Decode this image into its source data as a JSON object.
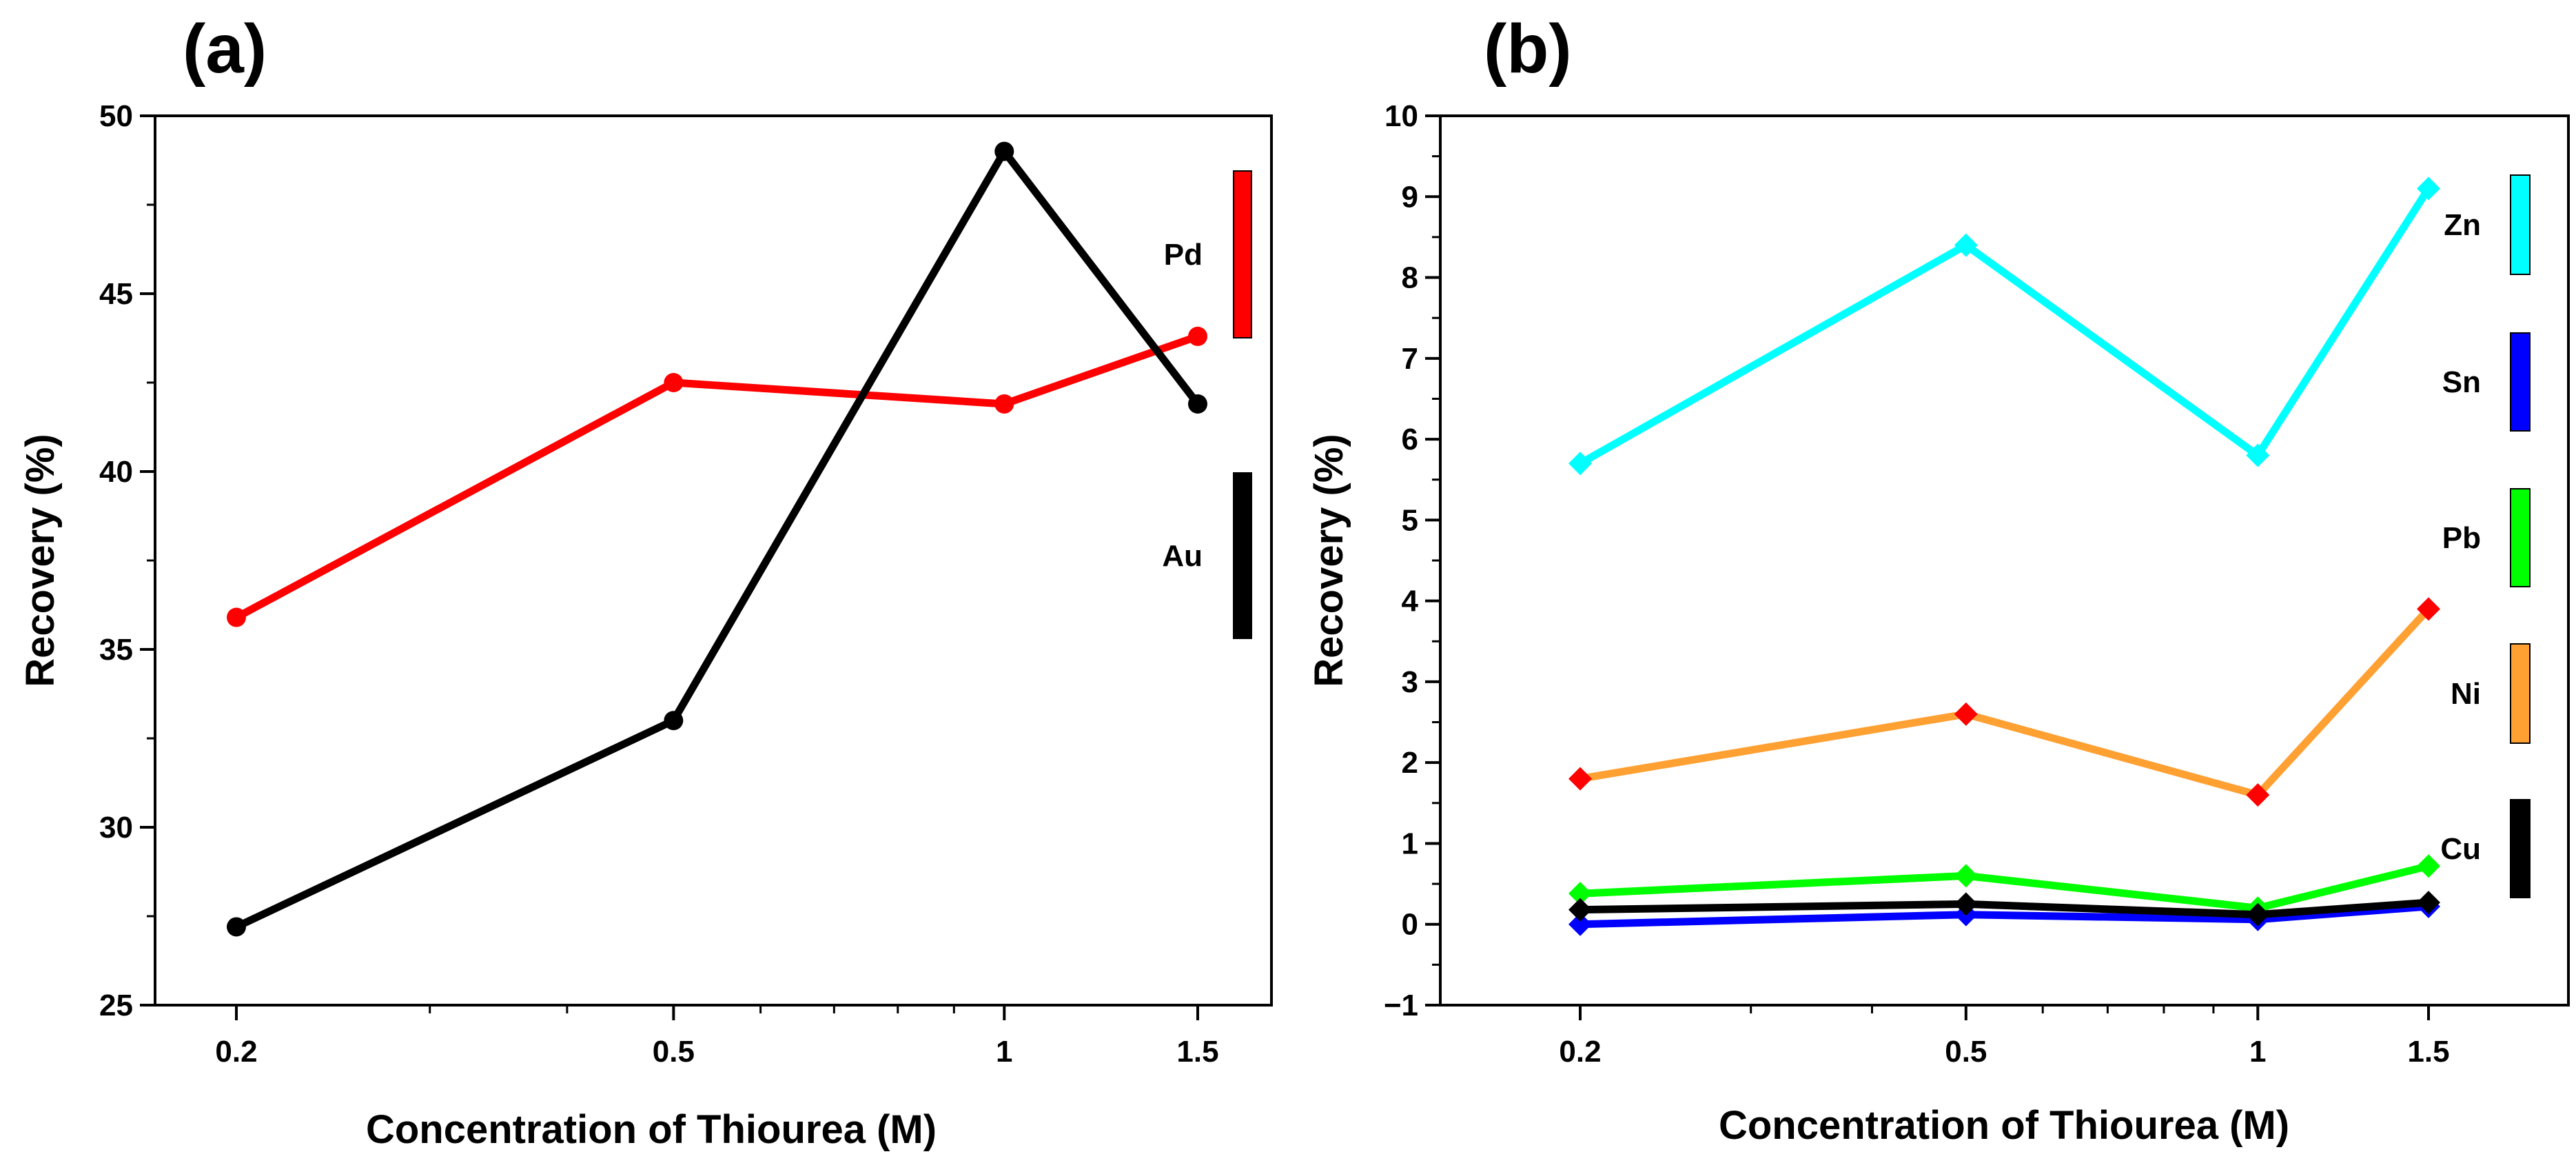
{
  "chart_data": [
    {
      "panel": "(a)",
      "type": "line",
      "xlabel": "Concentration of Thiourea (M)",
      "ylabel": "Recovery (%)",
      "xscale": "log",
      "xticks": [
        "0.2",
        "0.5",
        "1",
        "1.5"
      ],
      "x": [
        0.2,
        0.5,
        1,
        1.5
      ],
      "ylim": [
        25,
        50
      ],
      "yticks": [
        "25",
        "30",
        "35",
        "40",
        "45",
        "50"
      ],
      "grid": false,
      "legend_placement": "right",
      "marker": "circle",
      "series": [
        {
          "name": "Pd",
          "color": "#ff0000",
          "marker_color": "#ff0000",
          "values": [
            35.9,
            42.5,
            41.9,
            43.8
          ]
        },
        {
          "name": "Au",
          "color": "#000000",
          "marker_color": "#000000",
          "values": [
            27.2,
            33.0,
            49.0,
            41.9
          ]
        }
      ]
    },
    {
      "panel": "(b)",
      "type": "line",
      "xlabel": "Concentration of Thiourea (M)",
      "ylabel": "Recovery (%)",
      "xscale": "log",
      "xticks": [
        "0.2",
        "0.5",
        "1",
        "1.5"
      ],
      "x": [
        0.2,
        0.5,
        1,
        1.5
      ],
      "ylim": [
        -1,
        10
      ],
      "yticks": [
        "−1",
        "0",
        "1",
        "2",
        "3",
        "4",
        "5",
        "6",
        "7",
        "8",
        "9",
        "10"
      ],
      "grid": false,
      "legend_placement": "right",
      "marker": "diamond",
      "series": [
        {
          "name": "Zn",
          "color": "#00ffff",
          "marker_color": "#00ffff",
          "values": [
            5.7,
            8.4,
            5.8,
            9.1
          ]
        },
        {
          "name": "Sn",
          "color": "#0000ff",
          "marker_color": "#0000ff",
          "values": [
            0.0,
            0.12,
            0.06,
            0.22
          ]
        },
        {
          "name": "Pb",
          "color": "#00ff00",
          "marker_color": "#00ff00",
          "values": [
            0.38,
            0.6,
            0.2,
            0.72
          ]
        },
        {
          "name": "Ni",
          "color": "#ffa033",
          "marker_color": "#ff0000",
          "values": [
            1.8,
            2.6,
            1.6,
            3.9
          ]
        },
        {
          "name": "Cu",
          "color": "#000000",
          "marker_color": "#000000",
          "values": [
            0.18,
            0.25,
            0.12,
            0.27
          ]
        }
      ]
    }
  ]
}
